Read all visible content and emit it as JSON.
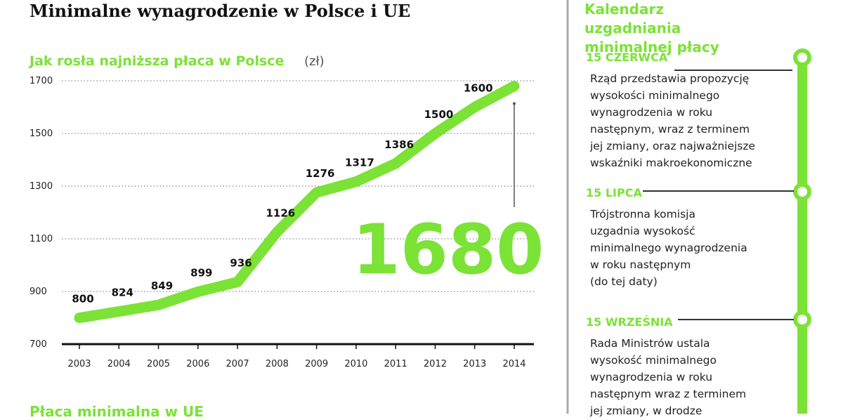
{
  "title": "Minimalne wynagrodzenie w Polsce i UE",
  "chart_data": {
    "type": "line",
    "subtitle": "Jak rosła najniższa płaca w Polsce",
    "unit": "(zł)",
    "categories": [
      "2003",
      "2004",
      "2005",
      "2006",
      "2007",
      "2008",
      "2009",
      "2010",
      "2011",
      "2012",
      "2013",
      "2014"
    ],
    "series": [
      {
        "name": "Płaca minimalna",
        "color": "#7be236",
        "values": [
          800,
          824,
          849,
          899,
          936,
          1126,
          1276,
          1317,
          1386,
          1500,
          1600,
          1680
        ]
      }
    ],
    "ylim": [
      700,
      1700
    ],
    "yticks": [
      700,
      900,
      1100,
      1300,
      1500,
      1700
    ],
    "grid": true
  },
  "section2_title": "Płaca minimalna w UE",
  "calendar": {
    "title": "Kalendarz uzgadniania minimalnej płacy",
    "events": [
      {
        "date": "15 CZERWCA",
        "lines": [
          "Rząd przedstawia propozycję",
          "wysokości minimalnego",
          "wynagrodzenia w roku",
          "następnym, wraz z terminem",
          "jej zmiany, oraz najważniejsze",
          "wskaźniki makroekonomiczne"
        ]
      },
      {
        "date": "15 LIPCA",
        "lines": [
          "Trójstronna komisja",
          "uzgadnia wysokość",
          "minimalnego wynagrodzenia",
          "w roku następnym",
          "(do tej daty)"
        ]
      },
      {
        "date": "15 WRZEŚNIA",
        "lines": [
          "Rada Ministrów ustala",
          "wysokość minimalnego",
          "wynagrodzenia w roku",
          "następnym wraz z terminem",
          "jej zmiany, w drodze"
        ]
      }
    ]
  }
}
